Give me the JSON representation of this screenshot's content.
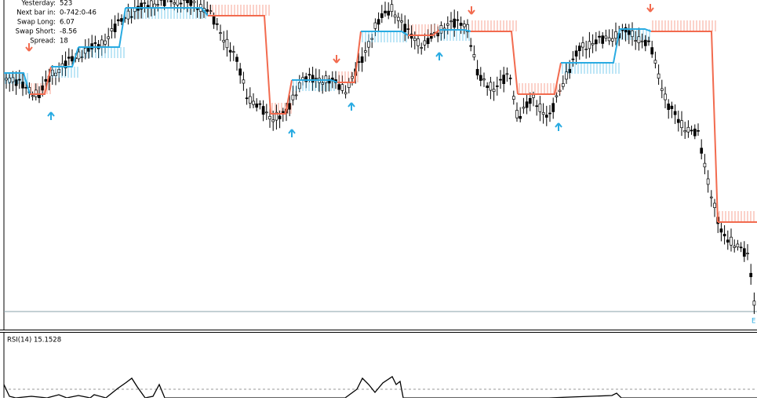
{
  "info_panel": {
    "rows": [
      {
        "label": "Yesterday:",
        "value": "523"
      },
      {
        "label": "Next bar in:",
        "value": "0-742:0-46"
      },
      {
        "label": "Swap Long:",
        "value": "6.07"
      },
      {
        "label": "Swap Short:",
        "value": "-8.56"
      },
      {
        "label": "Spread:",
        "value": "18"
      }
    ]
  },
  "indicator_panel": {
    "label": "RSI(14) 15.1528"
  }
}
